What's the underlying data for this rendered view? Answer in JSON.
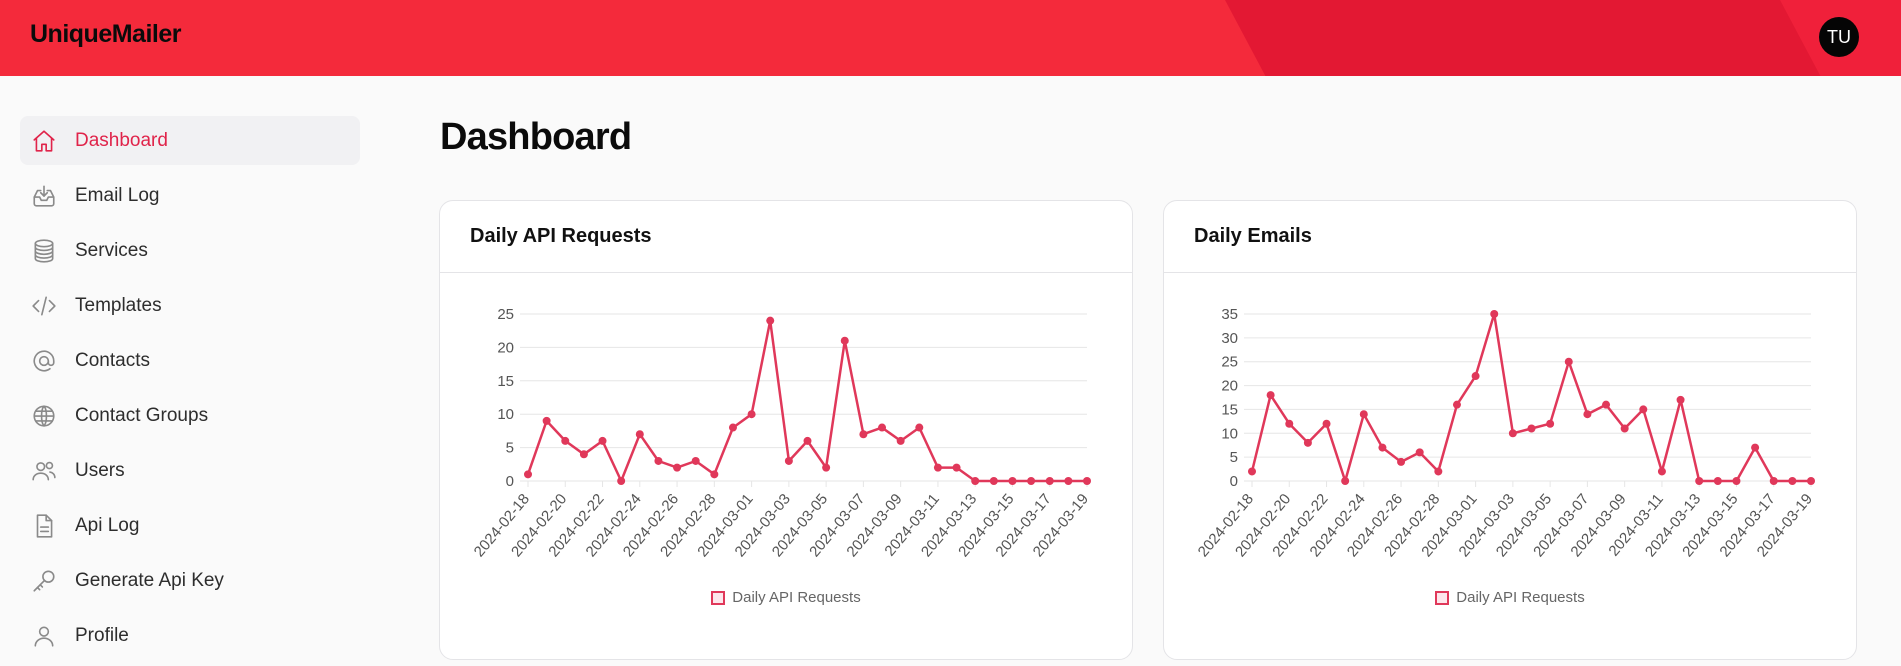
{
  "app": {
    "brand": "UniqueMailer",
    "user_initials": "TU"
  },
  "sidebar": {
    "items": [
      {
        "label": "Dashboard",
        "icon": "home-icon",
        "active": true
      },
      {
        "label": "Email Log",
        "icon": "inbox-icon"
      },
      {
        "label": "Services",
        "icon": "database-icon"
      },
      {
        "label": "Templates",
        "icon": "code-icon"
      },
      {
        "label": "Contacts",
        "icon": "at-icon"
      },
      {
        "label": "Contact Groups",
        "icon": "globe-icon"
      },
      {
        "label": "Users",
        "icon": "users-icon"
      },
      {
        "label": "Api Log",
        "icon": "document-icon"
      },
      {
        "label": "Generate Api Key",
        "icon": "key-icon"
      },
      {
        "label": "Profile",
        "icon": "user-icon"
      }
    ]
  },
  "main": {
    "title": "Dashboard"
  },
  "colors": {
    "accent": "#e0244a",
    "line": "#e0385a",
    "topbar": "#f42a3b"
  },
  "chart_data": [
    {
      "type": "line",
      "title": "Daily API Requests",
      "x": [
        "2024-02-18",
        "2024-02-19",
        "2024-02-20",
        "2024-02-21",
        "2024-02-22",
        "2024-02-23",
        "2024-02-24",
        "2024-02-25",
        "2024-02-26",
        "2024-02-27",
        "2024-02-28",
        "2024-02-29",
        "2024-03-01",
        "2024-03-02",
        "2024-03-03",
        "2024-03-04",
        "2024-03-05",
        "2024-03-06",
        "2024-03-07",
        "2024-03-08",
        "2024-03-09",
        "2024-03-10",
        "2024-03-11",
        "2024-03-12",
        "2024-03-13",
        "2024-03-14",
        "2024-03-15",
        "2024-03-16",
        "2024-03-17",
        "2024-03-18",
        "2024-03-19"
      ],
      "x_tick_labels": [
        "2024-02-18",
        "2024-02-20",
        "2024-02-22",
        "2024-02-24",
        "2024-02-26",
        "2024-02-28",
        "2024-03-01",
        "2024-03-03",
        "2024-03-05",
        "2024-03-07",
        "2024-03-09",
        "2024-03-11",
        "2024-03-13",
        "2024-03-15",
        "2024-03-17",
        "2024-03-19"
      ],
      "series": [
        {
          "name": "Daily API Requests",
          "values": [
            1,
            9,
            6,
            4,
            6,
            0,
            7,
            3,
            2,
            3,
            1,
            8,
            10,
            24,
            3,
            6,
            2,
            21,
            7,
            8,
            6,
            8,
            2,
            2,
            0,
            0,
            0,
            0,
            0,
            0,
            0
          ]
        }
      ],
      "ylim": [
        0,
        25
      ],
      "yticks": [
        0,
        5,
        10,
        15,
        20,
        25
      ],
      "legend": "bottom",
      "grid": true
    },
    {
      "type": "line",
      "title": "Daily Emails",
      "x": [
        "2024-02-18",
        "2024-02-19",
        "2024-02-20",
        "2024-02-21",
        "2024-02-22",
        "2024-02-23",
        "2024-02-24",
        "2024-02-25",
        "2024-02-26",
        "2024-02-27",
        "2024-02-28",
        "2024-02-29",
        "2024-03-01",
        "2024-03-02",
        "2024-03-03",
        "2024-03-04",
        "2024-03-05",
        "2024-03-06",
        "2024-03-07",
        "2024-03-08",
        "2024-03-09",
        "2024-03-10",
        "2024-03-11",
        "2024-03-12",
        "2024-03-13",
        "2024-03-14",
        "2024-03-15",
        "2024-03-16",
        "2024-03-17",
        "2024-03-18",
        "2024-03-19"
      ],
      "x_tick_labels": [
        "2024-02-18",
        "2024-02-20",
        "2024-02-22",
        "2024-02-24",
        "2024-02-26",
        "2024-02-28",
        "2024-03-01",
        "2024-03-03",
        "2024-03-05",
        "2024-03-07",
        "2024-03-09",
        "2024-03-11",
        "2024-03-13",
        "2024-03-15",
        "2024-03-17",
        "2024-03-19"
      ],
      "series": [
        {
          "name": "Daily API Requests",
          "values": [
            2,
            18,
            12,
            8,
            12,
            0,
            14,
            7,
            4,
            6,
            2,
            16,
            22,
            35,
            10,
            11,
            12,
            25,
            14,
            16,
            11,
            15,
            2,
            17,
            0,
            0,
            0,
            7,
            0,
            0,
            0
          ]
        }
      ],
      "ylim": [
        0,
        35
      ],
      "yticks": [
        0,
        5,
        10,
        15,
        20,
        25,
        30,
        35
      ],
      "legend": "bottom",
      "grid": true
    }
  ]
}
